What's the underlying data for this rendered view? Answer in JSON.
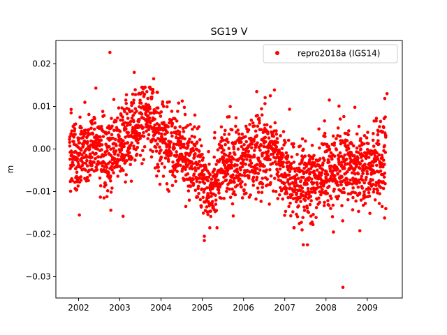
{
  "chart_data": {
    "type": "scatter",
    "title": "SG19 V",
    "xlabel": "",
    "ylabel": "m",
    "xlim": [
      2001.45,
      2009.85
    ],
    "ylim": [
      -0.035,
      0.0255
    ],
    "x_ticks": [
      2002,
      2003,
      2004,
      2005,
      2006,
      2007,
      2008,
      2009
    ],
    "x_tick_labels": [
      "2002",
      "2003",
      "2004",
      "2005",
      "2006",
      "2007",
      "2008",
      "2009"
    ],
    "y_ticks": [
      0.02,
      0.01,
      0.0,
      -0.01,
      -0.02,
      -0.03
    ],
    "y_tick_labels": [
      "0.02",
      "0.01",
      "0.00",
      "−0.01",
      "−0.02",
      "−0.03"
    ],
    "grid": false,
    "legend_position": "top-right",
    "marker_color": "#ff0000",
    "series": [
      {
        "name": "repro2018a (IGS14)",
        "color": "#ff0000",
        "trend": [
          [
            2001.78,
            -0.001
          ],
          [
            2002.0,
            -0.002
          ],
          [
            2002.3,
            0.001
          ],
          [
            2002.6,
            0.0
          ],
          [
            2002.9,
            -0.002
          ],
          [
            2003.1,
            0.002
          ],
          [
            2003.4,
            0.006
          ],
          [
            2003.7,
            0.007
          ],
          [
            2004.0,
            0.003
          ],
          [
            2004.3,
            0.0
          ],
          [
            2004.6,
            0.0
          ],
          [
            2004.95,
            -0.006
          ],
          [
            2005.2,
            -0.009
          ],
          [
            2005.5,
            -0.004
          ],
          [
            2005.8,
            -0.003
          ],
          [
            2006.1,
            -0.003
          ],
          [
            2006.4,
            -0.001
          ],
          [
            2006.7,
            0.0
          ],
          [
            2007.0,
            -0.006
          ],
          [
            2007.3,
            -0.008
          ],
          [
            2007.6,
            -0.009
          ],
          [
            2007.9,
            -0.005
          ],
          [
            2008.2,
            -0.005
          ],
          [
            2008.5,
            -0.003
          ],
          [
            2008.8,
            -0.004
          ],
          [
            2009.1,
            -0.005
          ],
          [
            2009.45,
            0.0
          ]
        ],
        "spread": 0.0045,
        "n_points": 2300,
        "outliers": [
          [
            2002.76,
            0.0227
          ],
          [
            2008.41,
            -0.0325
          ],
          [
            2007.45,
            -0.0225
          ],
          [
            2007.55,
            -0.0225
          ],
          [
            2005.05,
            -0.0215
          ],
          [
            2005.05,
            -0.0205
          ],
          [
            2003.35,
            0.018
          ],
          [
            2003.82,
            0.0165
          ],
          [
            2003.08,
            -0.0158
          ],
          [
            2002.42,
            0.0143
          ],
          [
            2008.18,
            -0.0195
          ],
          [
            2008.82,
            -0.0192
          ],
          [
            2009.48,
            0.013
          ],
          [
            2008.08,
            0.0115
          ],
          [
            2006.32,
            0.0135
          ],
          [
            2001.82,
            0.0093
          ],
          [
            2001.82,
            0.0085
          ],
          [
            2007.42,
            -0.019
          ],
          [
            2007.63,
            -0.0175
          ],
          [
            2009.42,
            -0.0162
          ],
          [
            2009.45,
            -0.014
          ],
          [
            2002.02,
            -0.0155
          ],
          [
            2004.6,
            -0.0135
          ],
          [
            2008.7,
            0.0098
          ],
          [
            2007.1,
            -0.0135
          ],
          [
            2006.65,
            0.0125
          ]
        ]
      }
    ]
  }
}
